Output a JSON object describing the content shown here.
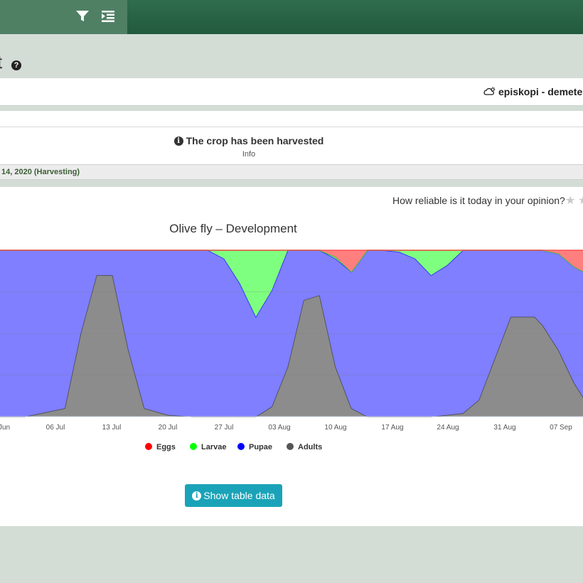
{
  "toolbar": {
    "icons": [
      "filter-icon",
      "indent-icon"
    ]
  },
  "page": {
    "title_fragment": "t",
    "help_glyph": "?"
  },
  "station": {
    "icon": "partly-cloudy-icon",
    "name": "episkopi - demeter p"
  },
  "info": {
    "icon": "info-icon",
    "message": "The crop has been harvested",
    "label": "Info"
  },
  "harvest": {
    "text": "14, 2020 (Harvesting)"
  },
  "reliability": {
    "question": "How reliable is it today in your opinion?",
    "star_glyph": "★"
  },
  "colors": {
    "eggs": "#ff7f7f",
    "larvae": "#7fff7f",
    "pupae": "#7f7fff",
    "adults": "#8c8c8c",
    "button": "#1aa3b8",
    "topbar": "#2f6c4d"
  },
  "chart_data": {
    "type": "area",
    "stacking": "percent",
    "title": "Olive fly – Development",
    "x_ticks": [
      "Jun",
      "06 Jul",
      "13 Jul",
      "20 Jul",
      "27 Jul",
      "03 Aug",
      "10 Aug",
      "17 Aug",
      "24 Aug",
      "31 Aug",
      "07 Sep"
    ],
    "x_days": [
      -0.2,
      3,
      8,
      10,
      12,
      14,
      16,
      18,
      21,
      24,
      26,
      28,
      30,
      32,
      34,
      36,
      38,
      40,
      42,
      44,
      46,
      48,
      50,
      52,
      54,
      56,
      58,
      60,
      62,
      64,
      66,
      67,
      68,
      70,
      72,
      74
    ],
    "ylim": [
      0,
      100
    ],
    "legend_position": "bottom",
    "series": [
      {
        "name": "Adults",
        "color": "#8c8c8c",
        "values": [
          0,
          0,
          5,
          50,
          85,
          85,
          40,
          5,
          1,
          0,
          0,
          0,
          0,
          0,
          6,
          30,
          70,
          73,
          30,
          5,
          0,
          0,
          0,
          0,
          0,
          1,
          2,
          10,
          35,
          60,
          60,
          60,
          55,
          40,
          20,
          5
        ]
      },
      {
        "name": "Pupae",
        "color": "#7f7fff",
        "values": [
          100,
          100,
          95,
          50,
          15,
          15,
          60,
          95,
          99,
          100,
          100,
          95,
          80,
          60,
          70,
          70,
          30,
          27,
          65,
          82,
          100,
          100,
          99,
          95,
          85,
          90,
          98,
          90,
          65,
          40,
          40,
          40,
          45,
          58,
          70,
          80
        ]
      },
      {
        "name": "Larvae",
        "color": "#7fff7f",
        "values": [
          0,
          0,
          0,
          0,
          0,
          0,
          0,
          0,
          0,
          0,
          0,
          5,
          20,
          40,
          24,
          0,
          0,
          0,
          1,
          0,
          0,
          0,
          1,
          5,
          15,
          9,
          0,
          0,
          0,
          0,
          0,
          0,
          0,
          0,
          0,
          0
        ]
      },
      {
        "name": "Eggs",
        "color": "#ff7f7f",
        "values": [
          0,
          0,
          0,
          0,
          0,
          0,
          0,
          0,
          0,
          0,
          0,
          0,
          0,
          0,
          0,
          0,
          0,
          0,
          4,
          13,
          0,
          0,
          0,
          0,
          0,
          0,
          0,
          0,
          0,
          0,
          0,
          0,
          0,
          2,
          10,
          15
        ]
      }
    ],
    "legend": [
      {
        "name": "Eggs",
        "color": "#ff0000"
      },
      {
        "name": "Larvae",
        "color": "#00ff00"
      },
      {
        "name": "Pupae",
        "color": "#0000ff"
      },
      {
        "name": "Adults",
        "color": "#555555"
      }
    ]
  },
  "button": {
    "icon": "info-icon",
    "label": "Show table data"
  }
}
